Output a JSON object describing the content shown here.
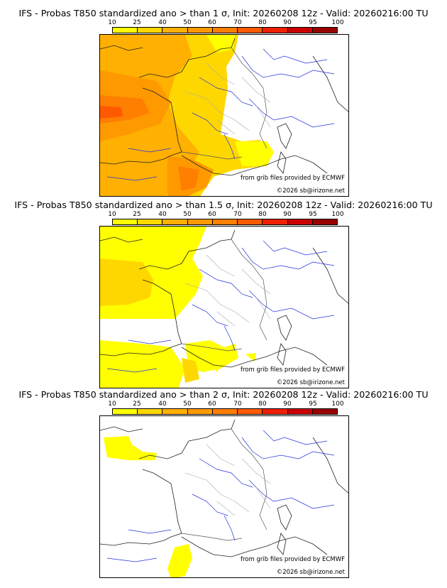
{
  "legend": {
    "labels": [
      "10",
      "25",
      "40",
      "50",
      "60",
      "70",
      "80",
      "90",
      "95",
      "100"
    ],
    "colors": [
      "#ffff00",
      "#ffd700",
      "#ffb000",
      "#ff9900",
      "#ff7f00",
      "#ff5a00",
      "#ee2000",
      "#cc0000",
      "#990000",
      "#5a0000"
    ]
  },
  "panels": [
    {
      "title": "IFS - Probas T850  standardized ano > than 1 σ, Init: 20260208 12z - Valid: 20260216:00 TU",
      "source_note": "from grib files provided by ECMWF",
      "copyright": "©2026 sb@irizone.net"
    },
    {
      "title": "IFS - Probas T850  standardized ano > than 1.5 σ, Init: 20260208 12z - Valid: 20260216:00 TU",
      "source_note": "from grib files provided by ECMWF",
      "copyright": "©2026 sb@irizone.net"
    },
    {
      "title": "IFS - Probas T850  standardized ano > than 2 σ, Init: 20260208 12z - Valid: 20260216:00 TU",
      "source_note": "from grib files provided by ECMWF",
      "copyright": "©2026 sb@irizone.net"
    }
  ]
}
